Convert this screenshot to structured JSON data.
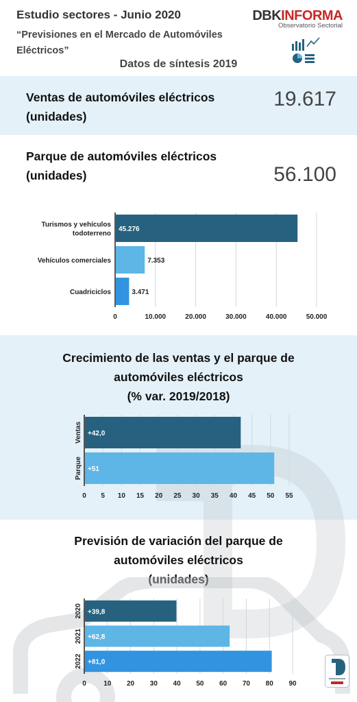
{
  "header": {
    "title": "Estudio sectores - Junio 2020",
    "subtitle": "“Previsiones en el Mercado de Automóviles Eléctricos”",
    "logo_dbk": "DBK",
    "logo_informa": "INFORMA",
    "logo_tagline": "Observatorio Sectorial",
    "section": "Datos de síntesis 2019"
  },
  "kpis": [
    {
      "label_line1": "Ventas de automóviles eléctricos",
      "label_line2": "(unidades)",
      "value": "19.617"
    },
    {
      "label_line1": "Parque de automóviles eléctricos",
      "label_line2": "(unidades)",
      "value": "56.100"
    }
  ],
  "titles": {
    "growth_line1": "Crecimiento de las ventas y el parque de",
    "growth_line2": "automóviles eléctricos",
    "growth_line3": "(% var. 2019/2018)",
    "forecast_line1": "Previsión de variación del parque de",
    "forecast_line2": "automóviles eléctricos",
    "forecast_line3": "(unidades)"
  },
  "colors": {
    "dark_bar": "#26627f",
    "light_bar": "#5db6e6",
    "blue_bar": "#3294e0",
    "band": "#e4f1f9"
  },
  "chart_data": [
    {
      "type": "bar",
      "orientation": "horizontal",
      "categories": [
        "Turismos y vehículos todoterreno",
        "Vehículos comerciales",
        "Cuadriciclos"
      ],
      "values": [
        45276,
        7353,
        3471
      ],
      "value_labels": [
        "45.276",
        "7.353",
        "3.471"
      ],
      "xlim": [
        0,
        50000
      ],
      "xticks": [
        0,
        10000,
        20000,
        30000,
        40000,
        50000
      ],
      "xtick_labels": [
        "0",
        "10.000",
        "20.000",
        "30.000",
        "40.000",
        "50.000"
      ],
      "grid": true,
      "colors": [
        "#26627f",
        "#5db6e6",
        "#3294e0"
      ]
    },
    {
      "type": "bar",
      "orientation": "horizontal",
      "title": "Crecimiento de las ventas y el parque de automóviles eléctricos (% var. 2019/2018)",
      "categories": [
        "Ventas",
        "Parque"
      ],
      "values": [
        42.0,
        51
      ],
      "value_labels": [
        "+42,0",
        "+51"
      ],
      "xlim": [
        0,
        55
      ],
      "xticks": [
        0,
        5,
        10,
        15,
        20,
        25,
        30,
        35,
        40,
        45,
        50,
        55
      ],
      "grid": true,
      "colors": [
        "#26627f",
        "#5db6e6"
      ]
    },
    {
      "type": "bar",
      "orientation": "horizontal",
      "title": "Previsión de variación del parque de automóviles eléctricos (unidades)",
      "categories": [
        "2020",
        "2021",
        "2022"
      ],
      "values": [
        39.8,
        62.8,
        81.0
      ],
      "value_labels": [
        "+39,8",
        "+62,8",
        "+81,0"
      ],
      "xlim": [
        0,
        90
      ],
      "xticks": [
        0,
        10,
        20,
        30,
        40,
        50,
        60,
        70,
        80,
        90
      ],
      "grid": true,
      "colors": [
        "#26627f",
        "#5db6e6",
        "#3294e0"
      ]
    }
  ]
}
